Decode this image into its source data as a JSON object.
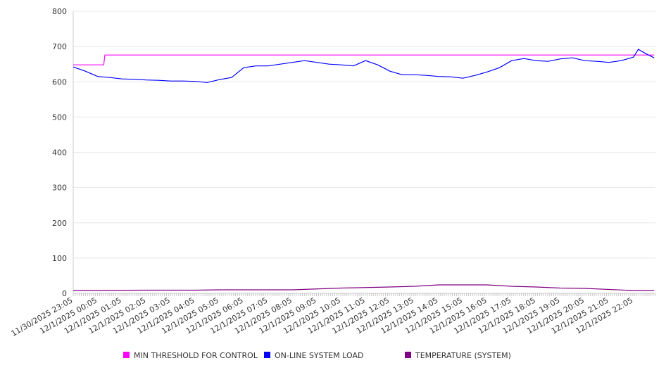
{
  "chart_data": {
    "type": "line",
    "title": "",
    "xlabel": "",
    "ylabel": "",
    "ylim": [
      0,
      800
    ],
    "yticks": [
      0,
      100,
      200,
      300,
      400,
      500,
      600,
      700,
      800
    ],
    "x_unit": "hours since 11/30/2025 23:05",
    "xlim": [
      0,
      23.85
    ],
    "xtick_labels": [
      "11/30/2025 23:05",
      "12/1/2025 00:05",
      "12/1/2025 01:05",
      "12/1/2025 02:05",
      "12/1/2025 03:05",
      "12/1/2025 04:05",
      "12/1/2025 05:05",
      "12/1/2025 06:05",
      "12/1/2025 07:05",
      "12/1/2025 08:05",
      "12/1/2025 09:05",
      "12/1/2025 10:05",
      "12/1/2025 11:05",
      "12/1/2025 12:05",
      "12/1/2025 13:05",
      "12/1/2025 14:05",
      "12/1/2025 15:05",
      "12/1/2025 16:05",
      "12/1/2025 17:05",
      "12/1/2025 18:05",
      "12/1/2025 19:05",
      "12/1/2025 20:05",
      "12/1/2025 21:05",
      "12/1/2025 22:05"
    ],
    "grid": true,
    "legend_position": "bottom",
    "series": [
      {
        "name": "MIN THRESHOLD FOR CONTROL",
        "color": "#ff00ff",
        "x": [
          0,
          1.25,
          1.3,
          23.85
        ],
        "y": [
          648,
          648,
          676,
          676
        ]
      },
      {
        "name": "ON-LINE SYSTEM LOAD",
        "color": "#0000ff",
        "x": [
          0,
          0.5,
          1,
          1.5,
          2,
          2.5,
          3,
          3.5,
          4,
          4.5,
          5,
          5.5,
          6,
          6.5,
          7,
          7.5,
          8,
          8.5,
          9,
          9.5,
          10,
          10.5,
          11,
          11.5,
          12,
          12.5,
          13,
          13.5,
          14,
          14.5,
          15,
          15.5,
          16,
          16.5,
          17,
          17.5,
          18,
          18.5,
          19,
          19.5,
          20,
          20.5,
          21,
          21.5,
          22,
          22.5,
          23,
          23.2,
          23.5,
          23.85
        ],
        "y": [
          642,
          630,
          615,
          612,
          608,
          607,
          605,
          604,
          602,
          602,
          601,
          598,
          606,
          612,
          640,
          645,
          645,
          650,
          655,
          660,
          655,
          650,
          648,
          645,
          660,
          648,
          630,
          620,
          620,
          618,
          615,
          614,
          610,
          618,
          628,
          640,
          660,
          666,
          660,
          658,
          665,
          668,
          660,
          658,
          655,
          660,
          670,
          692,
          680,
          668
        ]
      },
      {
        "name": "TEMPERATURE (SYSTEM)",
        "color": "#800080",
        "x": [
          0,
          3,
          5,
          6,
          9,
          11,
          13,
          14,
          15,
          17,
          18,
          19,
          20,
          21,
          23,
          23.85
        ],
        "y": [
          8,
          9,
          9,
          10,
          10,
          15,
          18,
          20,
          24,
          24,
          20,
          18,
          15,
          14,
          8,
          8
        ]
      }
    ]
  }
}
